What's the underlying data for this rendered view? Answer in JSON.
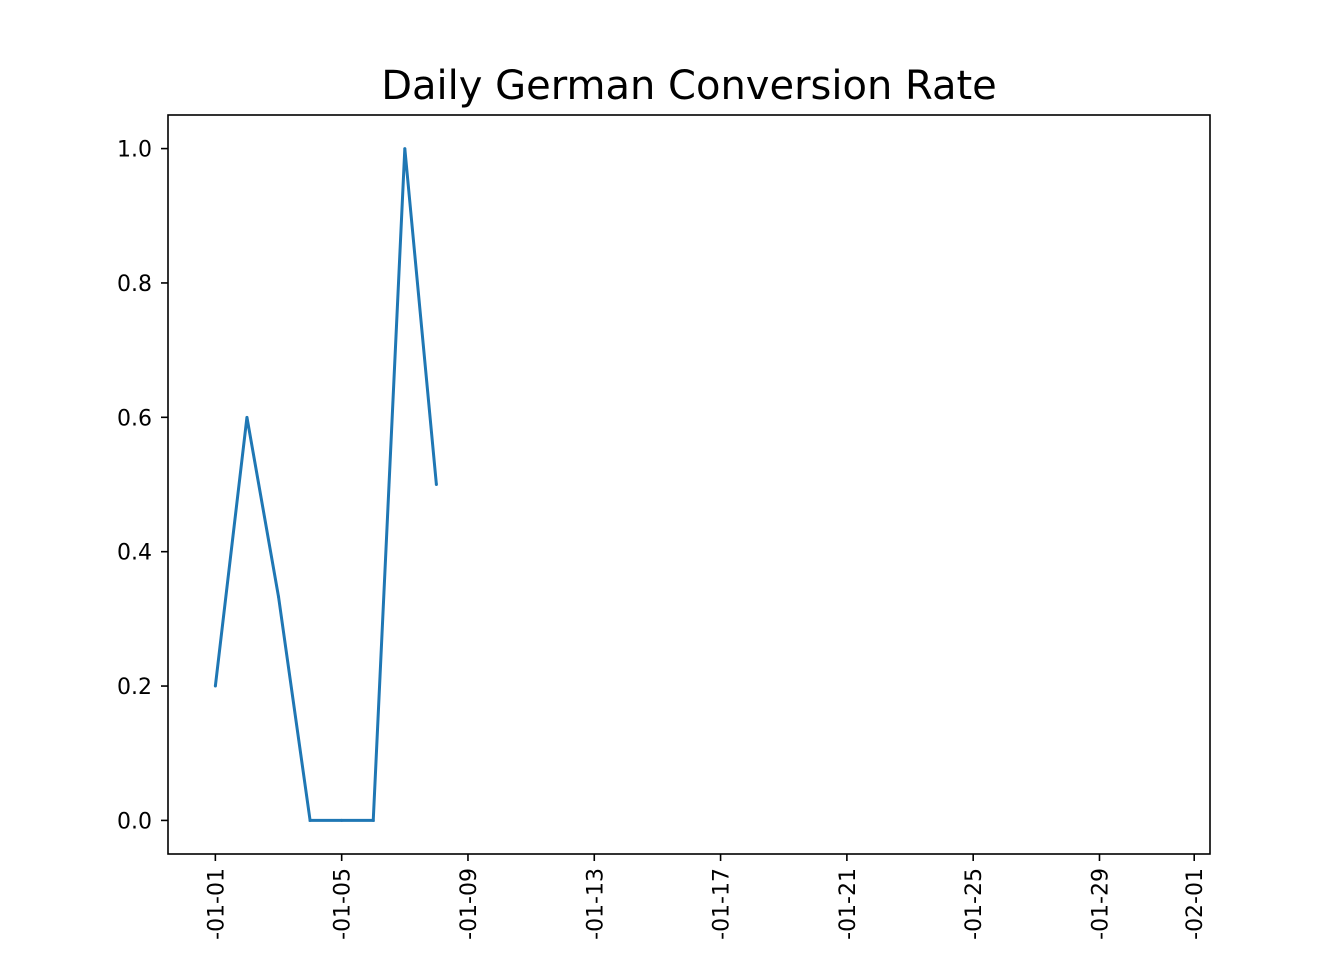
{
  "chart_data": {
    "type": "line",
    "title": "Daily German Conversion Rate",
    "xlabel": "",
    "ylabel": "",
    "series": [
      {
        "color": "#1f77b4",
        "x": [
          "2017-01-01",
          "2017-01-02",
          "2017-01-03",
          "2017-01-04",
          "2017-01-05",
          "2017-01-06",
          "2017-01-07",
          "2017-01-08"
        ],
        "y": [
          0.2,
          0.6,
          0.333,
          0.0,
          0.0,
          0.0,
          1.0,
          0.5
        ]
      }
    ],
    "x_ticks": [
      {
        "date": "2017-01-01",
        "label": "-01-01"
      },
      {
        "date": "2017-01-05",
        "label": "-01-05"
      },
      {
        "date": "2017-01-09",
        "label": "-01-09"
      },
      {
        "date": "2017-01-13",
        "label": "-01-13"
      },
      {
        "date": "2017-01-17",
        "label": "-01-17"
      },
      {
        "date": "2017-01-21",
        "label": "-01-21"
      },
      {
        "date": "2017-01-25",
        "label": "-01-25"
      },
      {
        "date": "2017-01-29",
        "label": "-01-29"
      },
      {
        "date": "2017-02-01",
        "label": "-02-01"
      }
    ],
    "y_ticks": [
      {
        "value": 0.0,
        "label": "0.0"
      },
      {
        "value": 0.2,
        "label": "0.2"
      },
      {
        "value": 0.4,
        "label": "0.4"
      },
      {
        "value": 0.6,
        "label": "0.6"
      },
      {
        "value": 0.8,
        "label": "0.8"
      },
      {
        "value": 1.0,
        "label": "1.0"
      }
    ],
    "xlim": [
      "2016-12-30 12:00",
      "2017-02-01 12:00"
    ],
    "ylim": [
      -0.05,
      1.05
    ],
    "grid": false,
    "legend": false
  }
}
